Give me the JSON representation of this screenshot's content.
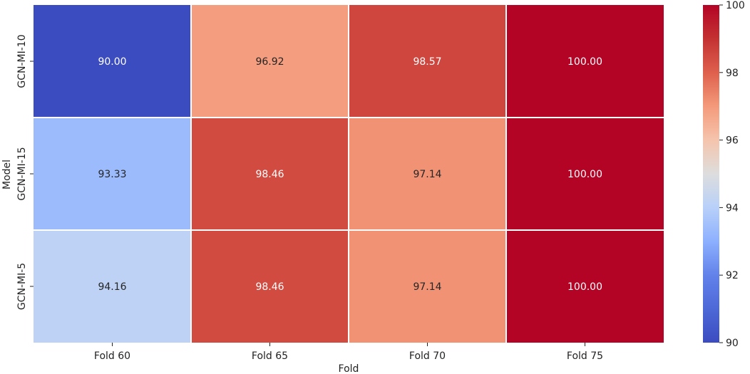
{
  "chart_data": {
    "type": "heatmap",
    "title": "",
    "xlabel": "Fold",
    "ylabel": "Model",
    "x_categories": [
      "Fold 60",
      "Fold 65",
      "Fold 70",
      "Fold 75"
    ],
    "y_categories": [
      "GCN-MI-10",
      "GCN-MI-15",
      "GCN-MI-5"
    ],
    "values": [
      [
        90.0,
        96.92,
        98.57,
        100.0
      ],
      [
        93.33,
        98.46,
        97.14,
        100.0
      ],
      [
        94.16,
        98.46,
        97.14,
        100.0
      ]
    ],
    "value_labels": [
      [
        "90.00",
        "96.92",
        "98.57",
        "100.00"
      ],
      [
        "93.33",
        "98.46",
        "97.14",
        "100.00"
      ],
      [
        "94.16",
        "98.46",
        "97.14",
        "100.00"
      ]
    ],
    "colormap": "coolwarm",
    "colorbar": {
      "range": [
        90,
        100
      ],
      "ticks": [
        90,
        92,
        94,
        96,
        98,
        100
      ]
    }
  }
}
